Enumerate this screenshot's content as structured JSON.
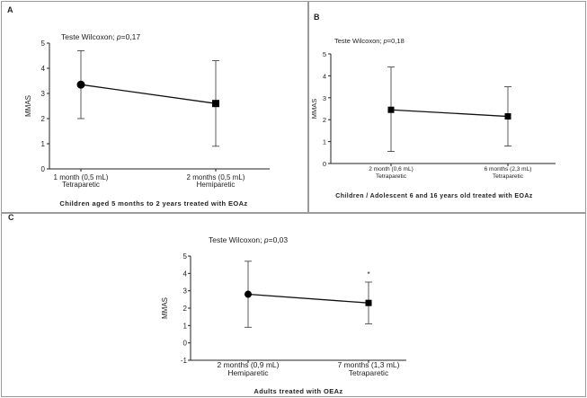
{
  "chart_data": [
    {
      "type": "line",
      "panel_label": "A",
      "annotation": "Teste Wilcoxon; p=0,17",
      "annotation_prefix": "Teste Wilcoxon; ",
      "annotation_italic": "p",
      "annotation_value": "=0,17",
      "ylabel": "MMAS",
      "ylim": [
        0,
        5
      ],
      "yticks": [
        "0",
        "1",
        "2",
        "3",
        "4",
        "5"
      ],
      "categories": [
        {
          "line1": "1 month (0,5 mL)",
          "line2": "Tetraparetic"
        },
        {
          "line1": "2 months (0,5 mL)",
          "line2": "Hemiparetic"
        }
      ],
      "values": [
        3.35,
        2.6
      ],
      "error_low": [
        2.0,
        0.9
      ],
      "error_high": [
        4.7,
        4.3
      ],
      "markers": [
        "circle",
        "square"
      ],
      "caption": "Children aged 5 months to 2 years treated with EOAz"
    },
    {
      "type": "line",
      "panel_label": "B",
      "annotation": "Teste Wilcoxon; p=0,18",
      "annotation_prefix": "Teste Wilcoxon; ",
      "annotation_italic": "p",
      "annotation_value": "=0,18",
      "ylabel": "MMAS",
      "ylim": [
        0,
        5
      ],
      "yticks": [
        "0",
        "1",
        "2",
        "3",
        "4",
        "5"
      ],
      "categories": [
        {
          "line1": "2 month (0,6 mL)",
          "line2": "Tetraparetic"
        },
        {
          "line1": "6 months (2,3 mL)",
          "line2": "Tetraparetic"
        }
      ],
      "values": [
        2.45,
        2.15
      ],
      "error_low": [
        0.55,
        0.8
      ],
      "error_high": [
        4.4,
        3.5
      ],
      "markers": [
        "square",
        "square"
      ],
      "caption": "Children / Adolescent 6 and 16 years old treated with EOAz"
    },
    {
      "type": "line",
      "panel_label": "C",
      "annotation": "Teste Wilcoxon; p=0,03",
      "annotation_prefix": "Teste Wilcoxon; ",
      "annotation_italic": "p",
      "annotation_value": "=0,03",
      "ylabel": "MMAS",
      "ylim": [
        -1,
        5
      ],
      "yticks": [
        "-1",
        "0",
        "1",
        "2",
        "3",
        "4",
        "5"
      ],
      "categories": [
        {
          "line1": "2 months (0,9 mL)",
          "line2": "Hemiparetic"
        },
        {
          "line1": "7 months (1,3 mL)",
          "line2": "Tetraparetic"
        }
      ],
      "values": [
        2.8,
        2.3
      ],
      "error_low": [
        0.9,
        1.1
      ],
      "error_high": [
        4.7,
        3.5
      ],
      "markers": [
        "circle",
        "square"
      ],
      "significance_mark": "*",
      "caption": "Adults treated with OEAz"
    }
  ]
}
